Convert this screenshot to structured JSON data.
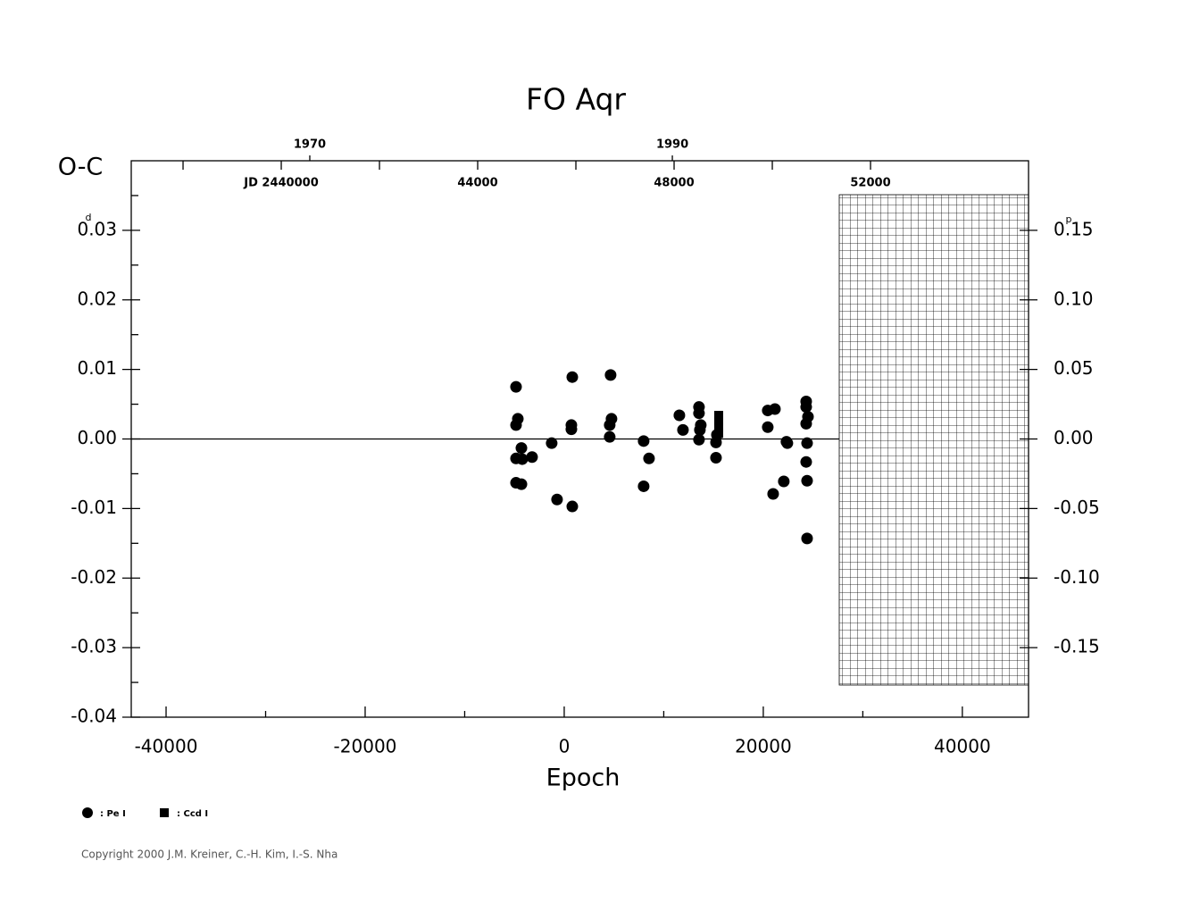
{
  "chart_data": {
    "type": "scatter",
    "title": "FO Aqr",
    "y_label": "O-C",
    "x_label": "Epoch",
    "y_unit": "d",
    "y2_unit": "p",
    "xlim": [
      -43500,
      46650
    ],
    "xticks": [
      -40000,
      -20000,
      0,
      20000,
      40000
    ],
    "x_minor_ticks": [
      -30000,
      -10000,
      10000,
      30000
    ],
    "ylim": [
      -0.04,
      0.04
    ],
    "yticks": [
      -0.04,
      -0.03,
      -0.02,
      -0.01,
      {
        "value": 0,
        "label": "0.00"
      },
      0.01,
      0.02,
      0.03
    ],
    "y_minor_ticks": [
      -0.035,
      -0.025,
      -0.015,
      -0.005,
      0.005,
      0.015,
      0.025,
      0.035
    ],
    "y2lim": [
      -0.2,
      0.2
    ],
    "y2ticks": [
      -0.15,
      {
        "value": -0.1,
        "label": "-0.10"
      },
      -0.05,
      {
        "value": 0,
        "label": "0.00"
      },
      0.05,
      {
        "value": 0.1,
        "label": "0.10"
      },
      0.15
    ],
    "jd_lim": [
      2436945,
      2455218
    ],
    "jd_ticks": [
      {
        "value": 2440000,
        "label": "JD 2440000"
      },
      {
        "value": 2444000,
        "label": "44000"
      },
      {
        "value": 2448000,
        "label": "48000"
      },
      {
        "value": 2452000,
        "label": "52000"
      }
    ],
    "jd_minor_ticks": [
      2438000,
      2442000,
      2446000,
      2450000
    ],
    "year_lim": [
      1960.15,
      2009.65
    ],
    "year_ticks": [
      1970,
      1990
    ],
    "zero_line": true,
    "series": [
      {
        "name": ": Pe I",
        "marker": "circle",
        "color": "#000000",
        "x": [
          -4840,
          -4660,
          -4840,
          -4300,
          -4840,
          -4220,
          -3230,
          -4840,
          -4300,
          -1260,
          -720,
          810,
          720,
          720,
          810,
          4660,
          4750,
          4570,
          4570,
          7980,
          7980,
          8520,
          11570,
          11930,
          13540,
          13540,
          13720,
          13630,
          13540,
          15250,
          15250,
          15340,
          20450,
          20450,
          21170,
          20990,
          22060,
          22330,
          22420,
          24310,
          24310,
          24490,
          24310,
          24400,
          24310,
          24400,
          24400
        ],
        "values": [
          0.0075,
          0.0029,
          0.002,
          -0.0013,
          -0.0028,
          -0.0029,
          -0.0026,
          -0.0063,
          -0.0065,
          -0.0006,
          -0.0087,
          0.0089,
          0.002,
          0.0014,
          -0.0097,
          0.0092,
          0.0029,
          0.002,
          0.0003,
          -0.0003,
          -0.0068,
          -0.0028,
          0.0034,
          0.0013,
          0.0046,
          0.0037,
          0.002,
          0.0013,
          -0.0001,
          -0.0005,
          -0.0027,
          0.0006,
          0.0017,
          0.0041,
          0.0043,
          -0.0079,
          -0.0061,
          -0.0004,
          -0.0006,
          0.0054,
          0.0046,
          0.0032,
          0.0022,
          -0.0006,
          -0.0033,
          -0.006,
          -0.0143
        ]
      },
      {
        "name": ": Ccd I",
        "marker": "square",
        "color": "#000000",
        "x": [
          15520,
          15520,
          15520,
          15520
        ],
        "values": [
          0.0034,
          0.0026,
          0.0017,
          0.0008
        ]
      }
    ],
    "copyright": "Copyright 2000 J.M. Kreiner, C.-H. Kim, I.-S. Nha"
  }
}
